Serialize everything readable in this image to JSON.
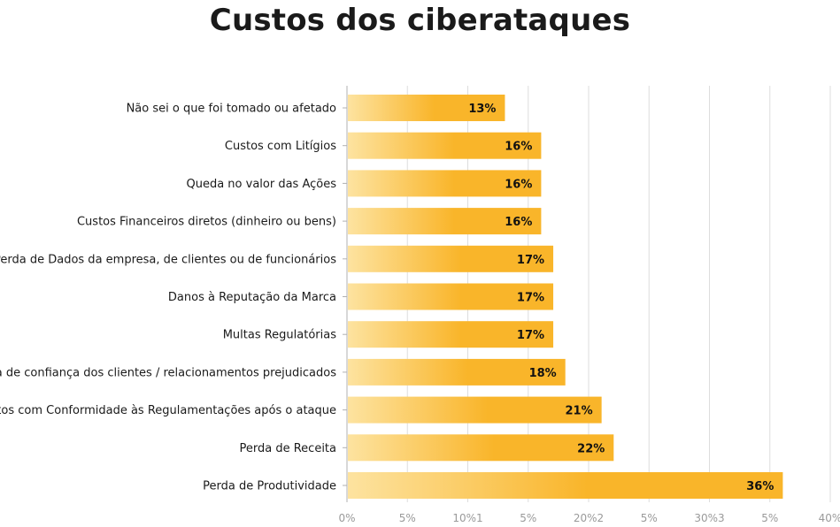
{
  "chart_data": {
    "type": "bar",
    "orientation": "horizontal",
    "title": "Custos dos ciberataques",
    "categories": [
      "Não sei o que foi tomado ou afetado",
      "Custos com Litígios",
      "Queda no valor das Ações",
      "Custos Financeiros diretos (dinheiro ou bens)",
      "Perda de Dados da empresa, de clientes ou de funcionários",
      "Danos à Reputação da Marca",
      "Multas Regulatórias",
      "Perda de confiança dos clientes / relacionamentos prejudicados",
      "Custos com Conformidade às Regulamentações após o ataque",
      "Perda de Receita",
      "Perda de Produtividade"
    ],
    "values": [
      13,
      16,
      16,
      16,
      17,
      17,
      17,
      18,
      21,
      22,
      36
    ],
    "value_labels": [
      "13%",
      "16%",
      "16%",
      "16%",
      "17%",
      "17%",
      "17%",
      "18%",
      "21%",
      "22%",
      "36%"
    ],
    "x_ticks": [
      "0%",
      "5%",
      "10%1",
      "5%",
      "20%2",
      "5%",
      "30%3",
      "5%",
      "40%"
    ],
    "xlim": [
      0,
      40
    ],
    "grid": true,
    "colors": {
      "bar_start": "#fde3a0",
      "bar_end": "#f9b52a",
      "grid": "#dddddd",
      "axis": "#b0b0b0"
    }
  }
}
